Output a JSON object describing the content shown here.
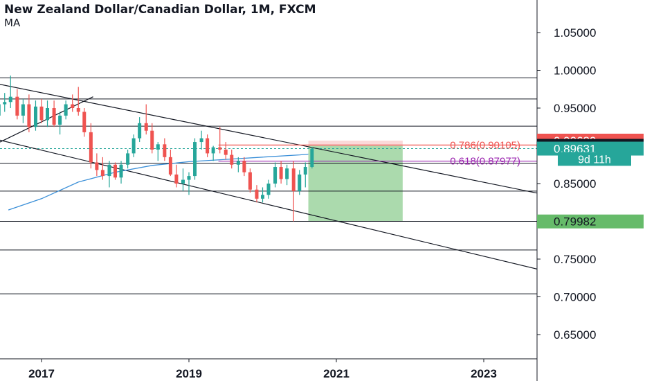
{
  "header": {
    "title": "New Zealand Dollar/Canadian Dollar, 1M, FXCM",
    "indicator": "MA"
  },
  "chart_data": {
    "type": "candlestick",
    "ylim": [
      0.6,
      1.1
    ],
    "y_ticks": [
      "1.05000",
      "1.00000",
      "0.95000",
      "0.85000",
      "0.75000",
      "0.70000",
      "0.65000"
    ],
    "x_ticks": [
      "2017",
      "2019",
      "2021",
      "2023"
    ],
    "x_tick_months": [
      2017.0,
      2019.0,
      2021.0,
      2023.0
    ],
    "colors": {
      "up": "#26a69a",
      "down": "#ef5350",
      "ma": "#3a8fd8",
      "text": "#131722"
    },
    "horizontal_levels": [
      0.99,
      0.962,
      0.926,
      0.877,
      0.84,
      0.8,
      0.762,
      0.704
    ],
    "channel_lines": [
      {
        "from": [
          2015.9,
          0.992
        ],
        "to": [
          2024.1,
          0.83
        ]
      },
      {
        "from": [
          2015.9,
          0.92
        ],
        "to": [
          2024.1,
          0.728
        ]
      }
    ],
    "fib_lines": [
      {
        "label": "0.786(0.90105)",
        "value": 0.90105,
        "color": "#ef5350"
      },
      {
        "label": "0.618(0.87977)",
        "value": 0.87977,
        "color": "#9c27b0"
      }
    ],
    "position": {
      "entry": 0.9,
      "stop": 0.90689,
      "target": 0.79982,
      "x_start": 2020.62,
      "x_end": 2021.9
    },
    "price_labels": [
      {
        "text": "0.90689",
        "value": 0.90689,
        "bg": "#ef5350",
        "fg": "#ffffff"
      },
      {
        "text": "0.90000",
        "value": 0.9,
        "bg": "#131722",
        "fg": "#ffffff"
      },
      {
        "text": "0.89631",
        "value": 0.89631,
        "bg": "#26a69a",
        "fg": "#ffffff"
      },
      {
        "text": "9d 11h",
        "value": 0.8827,
        "bg": "#26a69a",
        "fg": "#ffffff",
        "small": true
      },
      {
        "text": "0.79982",
        "value": 0.79982,
        "bg": "#66bb6a",
        "fg": "#131722"
      }
    ],
    "ma": [
      [
        2016.55,
        0.815
      ],
      [
        2017.0,
        0.83
      ],
      [
        2017.5,
        0.852
      ],
      [
        2018.0,
        0.865
      ],
      [
        2018.5,
        0.874
      ],
      [
        2019.0,
        0.879
      ],
      [
        2019.5,
        0.882
      ],
      [
        2020.0,
        0.885
      ],
      [
        2020.5,
        0.888
      ],
      [
        2020.62,
        0.889
      ]
    ],
    "candles": [
      {
        "t": 2016.0,
        "o": 0.93,
        "h": 0.945,
        "l": 0.9,
        "c": 0.912
      },
      {
        "t": 2016.08,
        "o": 0.912,
        "h": 0.93,
        "l": 0.895,
        "c": 0.925
      },
      {
        "t": 2016.17,
        "o": 0.925,
        "h": 0.955,
        "l": 0.92,
        "c": 0.948
      },
      {
        "t": 2016.25,
        "o": 0.948,
        "h": 0.958,
        "l": 0.93,
        "c": 0.952
      },
      {
        "t": 2016.33,
        "o": 0.952,
        "h": 0.962,
        "l": 0.935,
        "c": 0.94
      },
      {
        "t": 2016.42,
        "o": 0.94,
        "h": 0.96,
        "l": 0.935,
        "c": 0.955
      },
      {
        "t": 2016.5,
        "o": 0.955,
        "h": 0.97,
        "l": 0.945,
        "c": 0.958
      },
      {
        "t": 2016.58,
        "o": 0.958,
        "h": 0.993,
        "l": 0.95,
        "c": 0.965
      },
      {
        "t": 2016.67,
        "o": 0.965,
        "h": 0.975,
        "l": 0.935,
        "c": 0.94
      },
      {
        "t": 2016.75,
        "o": 0.94,
        "h": 0.962,
        "l": 0.93,
        "c": 0.955
      },
      {
        "t": 2016.83,
        "o": 0.955,
        "h": 0.968,
        "l": 0.918,
        "c": 0.925
      },
      {
        "t": 2016.92,
        "o": 0.925,
        "h": 0.96,
        "l": 0.92,
        "c": 0.952
      },
      {
        "t": 2017.0,
        "o": 0.952,
        "h": 0.962,
        "l": 0.93,
        "c": 0.934
      },
      {
        "t": 2017.08,
        "o": 0.934,
        "h": 0.96,
        "l": 0.925,
        "c": 0.95
      },
      {
        "t": 2017.17,
        "o": 0.95,
        "h": 0.96,
        "l": 0.925,
        "c": 0.928
      },
      {
        "t": 2017.25,
        "o": 0.928,
        "h": 0.945,
        "l": 0.915,
        "c": 0.94
      },
      {
        "t": 2017.33,
        "o": 0.94,
        "h": 0.96,
        "l": 0.935,
        "c": 0.955
      },
      {
        "t": 2017.42,
        "o": 0.955,
        "h": 0.968,
        "l": 0.945,
        "c": 0.95
      },
      {
        "t": 2017.5,
        "o": 0.95,
        "h": 0.978,
        "l": 0.94,
        "c": 0.945
      },
      {
        "t": 2017.58,
        "o": 0.945,
        "h": 0.95,
        "l": 0.912,
        "c": 0.918
      },
      {
        "t": 2017.67,
        "o": 0.918,
        "h": 0.93,
        "l": 0.87,
        "c": 0.878
      },
      {
        "t": 2017.75,
        "o": 0.878,
        "h": 0.89,
        "l": 0.86,
        "c": 0.868
      },
      {
        "t": 2017.83,
        "o": 0.868,
        "h": 0.885,
        "l": 0.855,
        "c": 0.86
      },
      {
        "t": 2017.92,
        "o": 0.86,
        "h": 0.88,
        "l": 0.845,
        "c": 0.875
      },
      {
        "t": 2018.0,
        "o": 0.875,
        "h": 0.878,
        "l": 0.855,
        "c": 0.858
      },
      {
        "t": 2018.08,
        "o": 0.858,
        "h": 0.88,
        "l": 0.85,
        "c": 0.875
      },
      {
        "t": 2018.17,
        "o": 0.875,
        "h": 0.895,
        "l": 0.87,
        "c": 0.89
      },
      {
        "t": 2018.25,
        "o": 0.89,
        "h": 0.915,
        "l": 0.885,
        "c": 0.91
      },
      {
        "t": 2018.33,
        "o": 0.91,
        "h": 0.938,
        "l": 0.905,
        "c": 0.93
      },
      {
        "t": 2018.42,
        "o": 0.93,
        "h": 0.955,
        "l": 0.915,
        "c": 0.92
      },
      {
        "t": 2018.5,
        "o": 0.92,
        "h": 0.93,
        "l": 0.89,
        "c": 0.895
      },
      {
        "t": 2018.58,
        "o": 0.895,
        "h": 0.905,
        "l": 0.88,
        "c": 0.902
      },
      {
        "t": 2018.67,
        "o": 0.902,
        "h": 0.91,
        "l": 0.88,
        "c": 0.885
      },
      {
        "t": 2018.75,
        "o": 0.885,
        "h": 0.895,
        "l": 0.86,
        "c": 0.862
      },
      {
        "t": 2018.83,
        "o": 0.862,
        "h": 0.875,
        "l": 0.845,
        "c": 0.85
      },
      {
        "t": 2018.92,
        "o": 0.85,
        "h": 0.87,
        "l": 0.84,
        "c": 0.855
      },
      {
        "t": 2019.0,
        "o": 0.855,
        "h": 0.865,
        "l": 0.835,
        "c": 0.86
      },
      {
        "t": 2019.08,
        "o": 0.86,
        "h": 0.91,
        "l": 0.855,
        "c": 0.905
      },
      {
        "t": 2019.17,
        "o": 0.905,
        "h": 0.92,
        "l": 0.895,
        "c": 0.91
      },
      {
        "t": 2019.25,
        "o": 0.91,
        "h": 0.915,
        "l": 0.885,
        "c": 0.89
      },
      {
        "t": 2019.33,
        "o": 0.89,
        "h": 0.9,
        "l": 0.88,
        "c": 0.898
      },
      {
        "t": 2019.42,
        "o": 0.898,
        "h": 0.925,
        "l": 0.89,
        "c": 0.895
      },
      {
        "t": 2019.5,
        "o": 0.895,
        "h": 0.905,
        "l": 0.882,
        "c": 0.888
      },
      {
        "t": 2019.58,
        "o": 0.888,
        "h": 0.895,
        "l": 0.87,
        "c": 0.875
      },
      {
        "t": 2019.67,
        "o": 0.875,
        "h": 0.885,
        "l": 0.865,
        "c": 0.88
      },
      {
        "t": 2019.75,
        "o": 0.88,
        "h": 0.885,
        "l": 0.86,
        "c": 0.865
      },
      {
        "t": 2019.83,
        "o": 0.865,
        "h": 0.87,
        "l": 0.838,
        "c": 0.842
      },
      {
        "t": 2019.92,
        "o": 0.842,
        "h": 0.848,
        "l": 0.825,
        "c": 0.83
      },
      {
        "t": 2020.0,
        "o": 0.83,
        "h": 0.845,
        "l": 0.825,
        "c": 0.835
      },
      {
        "t": 2020.08,
        "o": 0.835,
        "h": 0.855,
        "l": 0.83,
        "c": 0.85
      },
      {
        "t": 2020.17,
        "o": 0.85,
        "h": 0.878,
        "l": 0.845,
        "c": 0.872
      },
      {
        "t": 2020.25,
        "o": 0.872,
        "h": 0.88,
        "l": 0.85,
        "c": 0.856
      },
      {
        "t": 2020.33,
        "o": 0.856,
        "h": 0.875,
        "l": 0.848,
        "c": 0.87
      },
      {
        "t": 2020.42,
        "o": 0.87,
        "h": 0.88,
        "l": 0.8,
        "c": 0.84
      },
      {
        "t": 2020.5,
        "o": 0.84,
        "h": 0.868,
        "l": 0.835,
        "c": 0.862
      },
      {
        "t": 2020.58,
        "o": 0.862,
        "h": 0.878,
        "l": 0.845,
        "c": 0.872
      },
      {
        "t": 2020.67,
        "o": 0.872,
        "h": 0.898,
        "l": 0.87,
        "c": 0.896
      }
    ]
  }
}
